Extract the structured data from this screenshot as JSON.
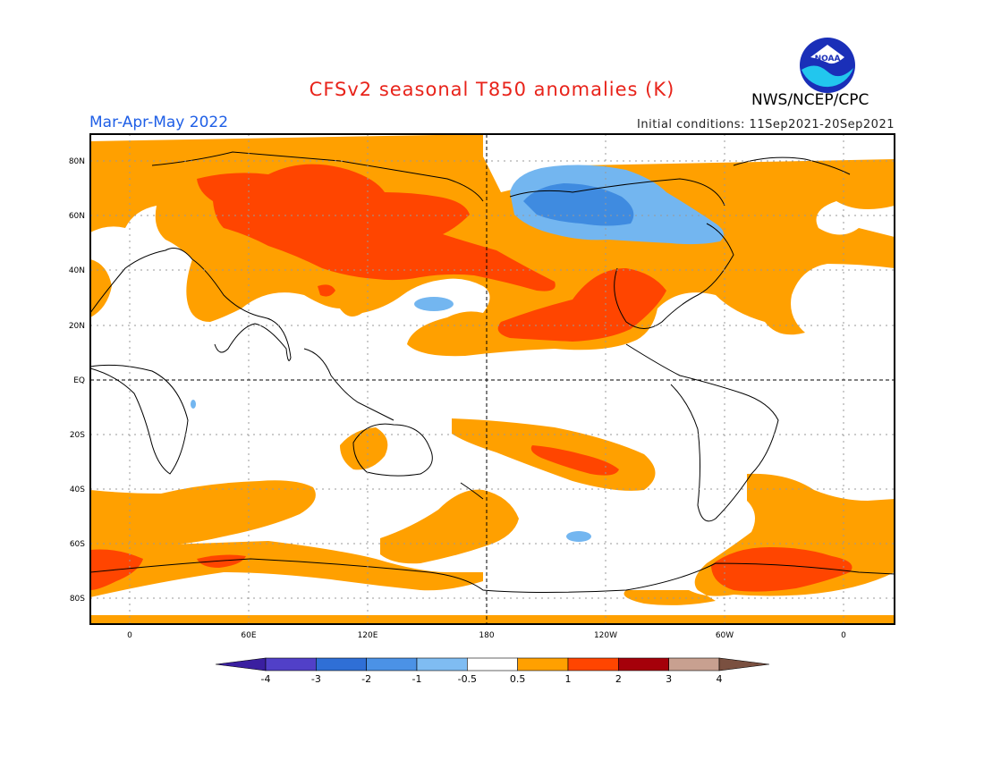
{
  "title": "CFSv2 seasonal T850 anomalies (K)",
  "season": "Mar-Apr-May 2022",
  "initial_conditions": "Initial conditions: 11Sep2021-20Sep2021",
  "agency": "NWS/NCEP/CPC",
  "logo_text": "NOAA",
  "colors": {
    "title": "#e8231a",
    "season": "#1f5fe6",
    "orange": "#ffa000",
    "red": "#ff4500",
    "blue_mid": "#3f8be0",
    "blue_light": "#73b6f0"
  },
  "map": {
    "lat_labels": [
      "80N",
      "60N",
      "40N",
      "20N",
      "EQ",
      "20S",
      "40S",
      "60S",
      "80S"
    ],
    "lon_labels": [
      "0",
      "60E",
      "120E",
      "180",
      "120W",
      "60W",
      "0"
    ]
  },
  "colorbar": {
    "labels": [
      "-4",
      "-3",
      "-2",
      "-1",
      "-0.5",
      "0.5",
      "1",
      "2",
      "3",
      "4"
    ],
    "colors": [
      "#3a1fa0",
      "#5140c8",
      "#2f6fd6",
      "#4b92e6",
      "#7fbcf2",
      "#ffffff",
      "#ffa000",
      "#ff4500",
      "#a5000a",
      "#c8a090",
      "#7a5040"
    ]
  }
}
